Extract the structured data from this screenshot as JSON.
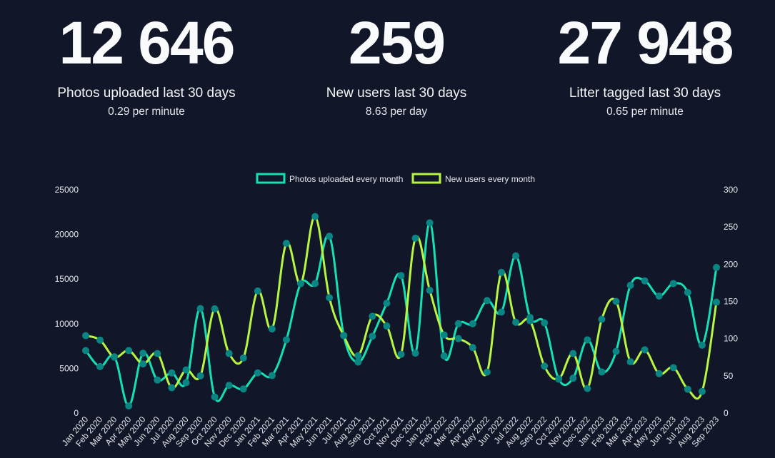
{
  "stats": [
    {
      "value": "12 646",
      "label": "Photos uploaded last 30 days",
      "rate": "0.29 per minute"
    },
    {
      "value": "259",
      "label": "New users last 30 days",
      "rate": "8.63 per day"
    },
    {
      "value": "27 948",
      "label": "Litter tagged last 30 days",
      "rate": "0.65 per minute"
    }
  ],
  "colors": {
    "background": "#111629",
    "photos": "#14e0b4",
    "users": "#b8f542",
    "points": "#0b8584"
  },
  "chart_data": {
    "type": "line",
    "categories": [
      "Jan 2020",
      "Feb 2020",
      "Mar 2020",
      "Apr 2020",
      "May 2020",
      "Jun 2020",
      "Jul 2020",
      "Aug 2020",
      "Sep 2020",
      "Oct 2020",
      "Nov 2020",
      "Dec 2020",
      "Jan 2021",
      "Feb 2021",
      "Mar 2021",
      "Apr 2021",
      "May 2021",
      "Jun 2021",
      "Jul 2021",
      "Aug 2021",
      "Sep 2021",
      "Oct 2021",
      "Nov 2021",
      "Dec 2021",
      "Jan 2022",
      "Feb 2022",
      "Mar 2022",
      "Apr 2022",
      "May 2022",
      "Jun 2022",
      "Jul 2022",
      "Aug 2022",
      "Sep 2022",
      "Oct 2022",
      "Nov 2022",
      "Dec 2022",
      "Jan 2023",
      "Feb 2023",
      "Mar 2023",
      "Apr 2023",
      "May 2023",
      "Jun 2023",
      "Jul 2023",
      "Aug 2023",
      "Sep 2023"
    ],
    "series": [
      {
        "name": "Photos uploaded every month",
        "axis": "left",
        "values": [
          7000,
          5200,
          6300,
          800,
          6700,
          3700,
          4500,
          3400,
          11700,
          1800,
          3100,
          2700,
          4500,
          4200,
          8200,
          14500,
          14500,
          19800,
          8700,
          5700,
          8600,
          12300,
          15400,
          6700,
          21300,
          6400,
          10000,
          10000,
          12600,
          11300,
          17600,
          10700,
          10100,
          3800,
          3900,
          8200,
          4600,
          6900,
          14300,
          14800,
          13100,
          14500,
          13500,
          7600,
          16300
        ]
      },
      {
        "name": "New users every month",
        "axis": "right",
        "values": [
          104,
          98,
          75,
          84,
          66,
          80,
          34,
          58,
          50,
          140,
          80,
          74,
          164,
          113,
          228,
          174,
          264,
          155,
          104,
          77,
          130,
          117,
          79,
          235,
          165,
          105,
          100,
          88,
          55,
          189,
          122,
          124,
          63,
          46,
          80,
          33,
          126,
          150,
          69,
          85,
          53,
          61,
          32,
          29,
          149
        ]
      }
    ],
    "left_axis": {
      "range": [
        0,
        25000
      ],
      "ticks": [
        "0",
        "5000",
        "10000",
        "15000",
        "20000",
        "25000"
      ]
    },
    "right_axis": {
      "range": [
        0,
        300
      ],
      "ticks": [
        "0",
        "50",
        "100",
        "150",
        "200",
        "250",
        "300"
      ]
    },
    "legend": "top-center",
    "grid": false
  }
}
